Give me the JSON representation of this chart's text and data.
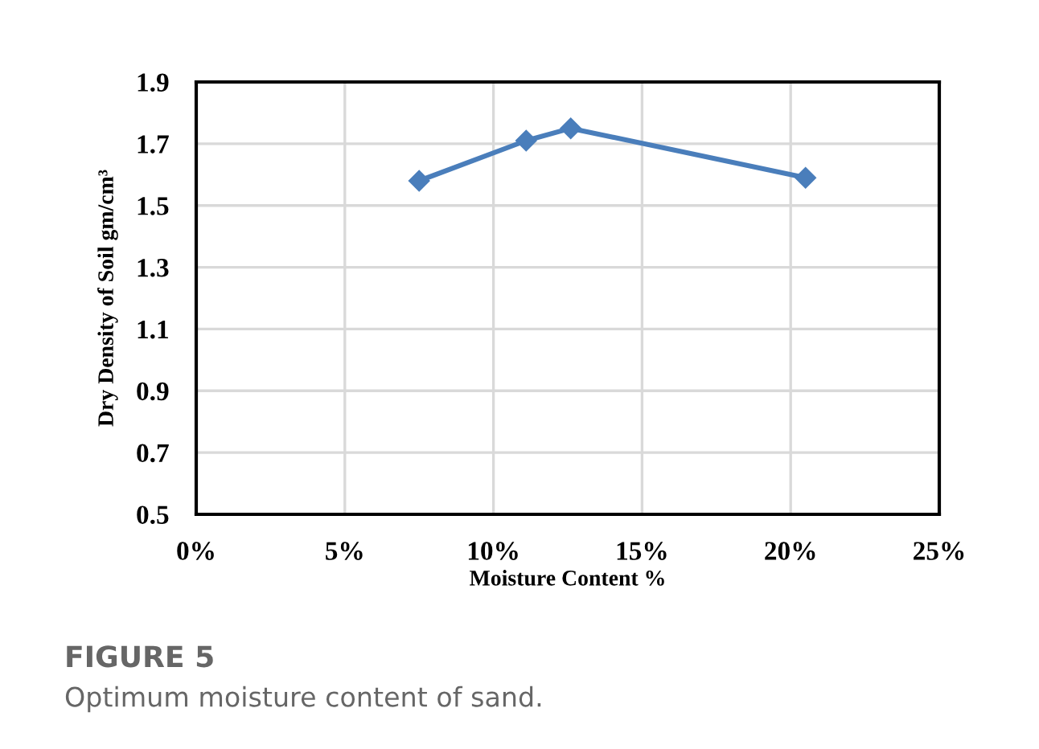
{
  "chart_data": {
    "type": "line",
    "xlabel": "Moisture Content %",
    "ylabel": "Dry Density of Soil gm/cm³",
    "x": [
      7.5,
      11.1,
      12.6,
      20.5
    ],
    "series": [
      {
        "color": "#4a7ebb",
        "values": [
          1.58,
          1.71,
          1.75,
          1.59
        ]
      }
    ],
    "xlim": [
      0,
      25
    ],
    "xticks": [
      {
        "value": 0,
        "label": "0%"
      },
      {
        "value": 5,
        "label": "5%"
      },
      {
        "value": 10,
        "label": "10%"
      },
      {
        "value": 15,
        "label": "15%"
      },
      {
        "value": 20,
        "label": "20%"
      },
      {
        "value": 25,
        "label": "25%"
      }
    ],
    "ylim": [
      0.5,
      1.9
    ],
    "yticks": [
      0.5,
      0.7,
      0.9,
      1.1,
      1.3,
      1.5,
      1.7,
      1.9
    ],
    "grid": true,
    "marker": "diamond",
    "line_style": "solid",
    "annotations": [
      "FIGURE 5",
      "Optimum moisture content of sand."
    ]
  }
}
